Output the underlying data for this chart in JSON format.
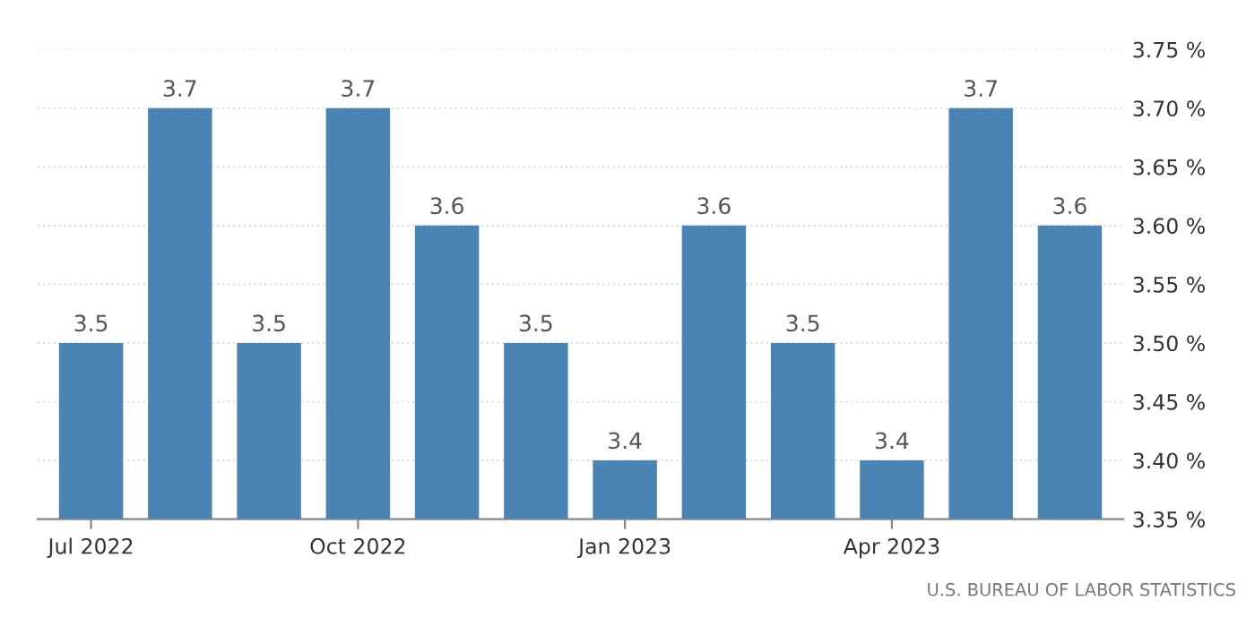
{
  "chart_data": {
    "type": "bar",
    "categories": [
      "Jul 2022",
      null,
      null,
      "Oct 2022",
      null,
      null,
      "Jan 2023",
      null,
      null,
      "Apr 2023",
      null,
      null
    ],
    "values": [
      3.5,
      3.7,
      3.5,
      3.7,
      3.6,
      3.5,
      3.4,
      3.6,
      3.5,
      3.4,
      3.7,
      3.6
    ],
    "color": "#4a84b5",
    "ylim": [
      3.35,
      3.75
    ],
    "yticks": [
      {
        "value": 3.35,
        "label": "3.35 %"
      },
      {
        "value": 3.4,
        "label": "3.40 %"
      },
      {
        "value": 3.45,
        "label": "3.45 %"
      },
      {
        "value": 3.5,
        "label": "3.50 %"
      },
      {
        "value": 3.55,
        "label": "3.55 %"
      },
      {
        "value": 3.6,
        "label": "3.60 %"
      },
      {
        "value": 3.65,
        "label": "3.65 %"
      },
      {
        "value": 3.7,
        "label": "3.70 %"
      },
      {
        "value": 3.75,
        "label": "3.75 %"
      }
    ],
    "grid": "y",
    "data_labels": true,
    "annotations": [
      "U.S. BUREAU OF LABOR STATISTICS"
    ]
  }
}
